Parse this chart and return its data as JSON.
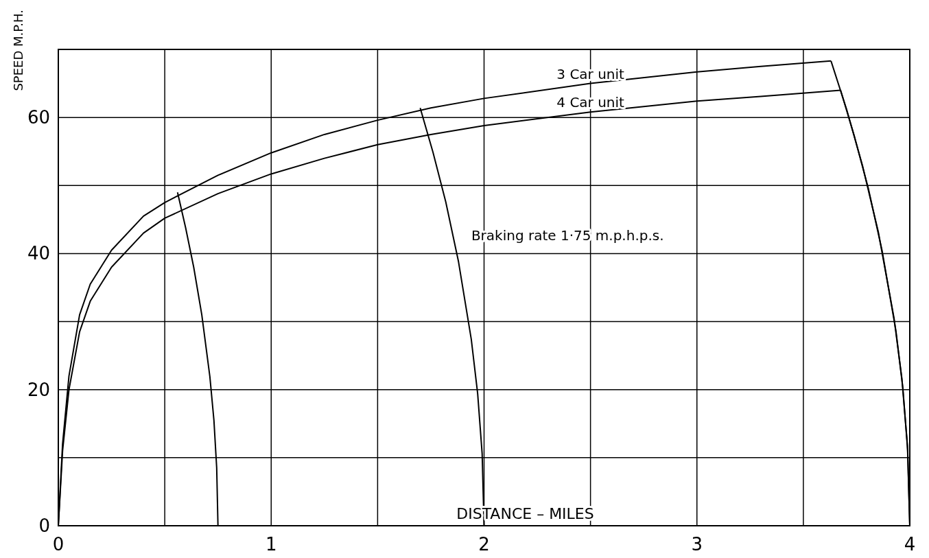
{
  "chart_data": {
    "type": "line",
    "xlabel": "DISTANCE – MILES",
    "ylabel": "SPEED M.P.H.",
    "xlim": [
      0,
      4
    ],
    "ylim": [
      0,
      70
    ],
    "xticks": [
      0,
      {
        "value": 0.5,
        "label": null
      },
      1,
      {
        "value": 1.5,
        "label": null
      },
      2,
      {
        "value": 2.5,
        "label": null
      },
      3,
      {
        "value": 3.5,
        "label": null
      },
      4
    ],
    "yticks": [
      0,
      {
        "value": 10,
        "label": null
      },
      20,
      {
        "value": 30,
        "label": null
      },
      40,
      {
        "value": 50,
        "label": null
      },
      60,
      {
        "value": 70,
        "label": null
      }
    ],
    "grid": true,
    "marker": "none",
    "line_style": "solid",
    "annotations": [
      "Braking rate 1·75 m.p.h.p.s."
    ],
    "series": [
      {
        "name": "3 Car unit",
        "color": "#000000",
        "x": [
          0,
          0.02,
          0.05,
          0.1,
          0.15,
          0.25,
          0.4,
          0.5,
          0.75,
          1,
          1.25,
          1.5,
          1.75,
          2,
          2.5,
          3,
          3.3,
          3.63
        ],
        "values": [
          0,
          12,
          22,
          31,
          35.5,
          40.5,
          45.5,
          47.5,
          51.5,
          54.8,
          57.5,
          59.6,
          61.4,
          62.8,
          65,
          66.7,
          67.5,
          68.3
        ]
      },
      {
        "name": "4 Car unit",
        "color": "#000000",
        "x": [
          0,
          0.02,
          0.05,
          0.1,
          0.15,
          0.25,
          0.4,
          0.5,
          0.75,
          1,
          1.25,
          1.5,
          1.75,
          2,
          2.5,
          3,
          3.3,
          3.675
        ],
        "values": [
          0,
          11,
          20,
          28.5,
          33,
          38,
          43,
          45.2,
          48.8,
          51.7,
          54,
          56,
          57.5,
          58.8,
          60.8,
          62.4,
          63.1,
          64
        ]
      },
      {
        "color": "#000000",
        "x": [
          0.56,
          0.598,
          0.636,
          0.674,
          0.712,
          0.731,
          0.744,
          0.75
        ],
        "values": [
          49,
          43.8,
          38,
          31,
          21.9,
          15.5,
          8.5,
          0
        ]
      },
      {
        "color": "#000000",
        "x": [
          1.7,
          1.76,
          1.82,
          1.88,
          1.94,
          1.97,
          1.991,
          2
        ],
        "values": [
          61.4,
          54.9,
          47.6,
          38.8,
          27.4,
          19.4,
          10.6,
          0
        ]
      },
      {
        "color": "#000000",
        "x": [
          3.63,
          3.704,
          3.778,
          3.852,
          3.926,
          3.963,
          3.989,
          4
        ],
        "values": [
          68.3,
          61.1,
          52.9,
          43.2,
          30.5,
          21.6,
          11.8,
          0
        ]
      },
      {
        "color": "#000000",
        "x": [
          3.675,
          3.74,
          3.805,
          3.87,
          3.935,
          3.9675,
          3.99,
          4
        ],
        "values": [
          64,
          57.2,
          49.6,
          40.4,
          28.6,
          20.2,
          11.1,
          0
        ]
      }
    ]
  }
}
